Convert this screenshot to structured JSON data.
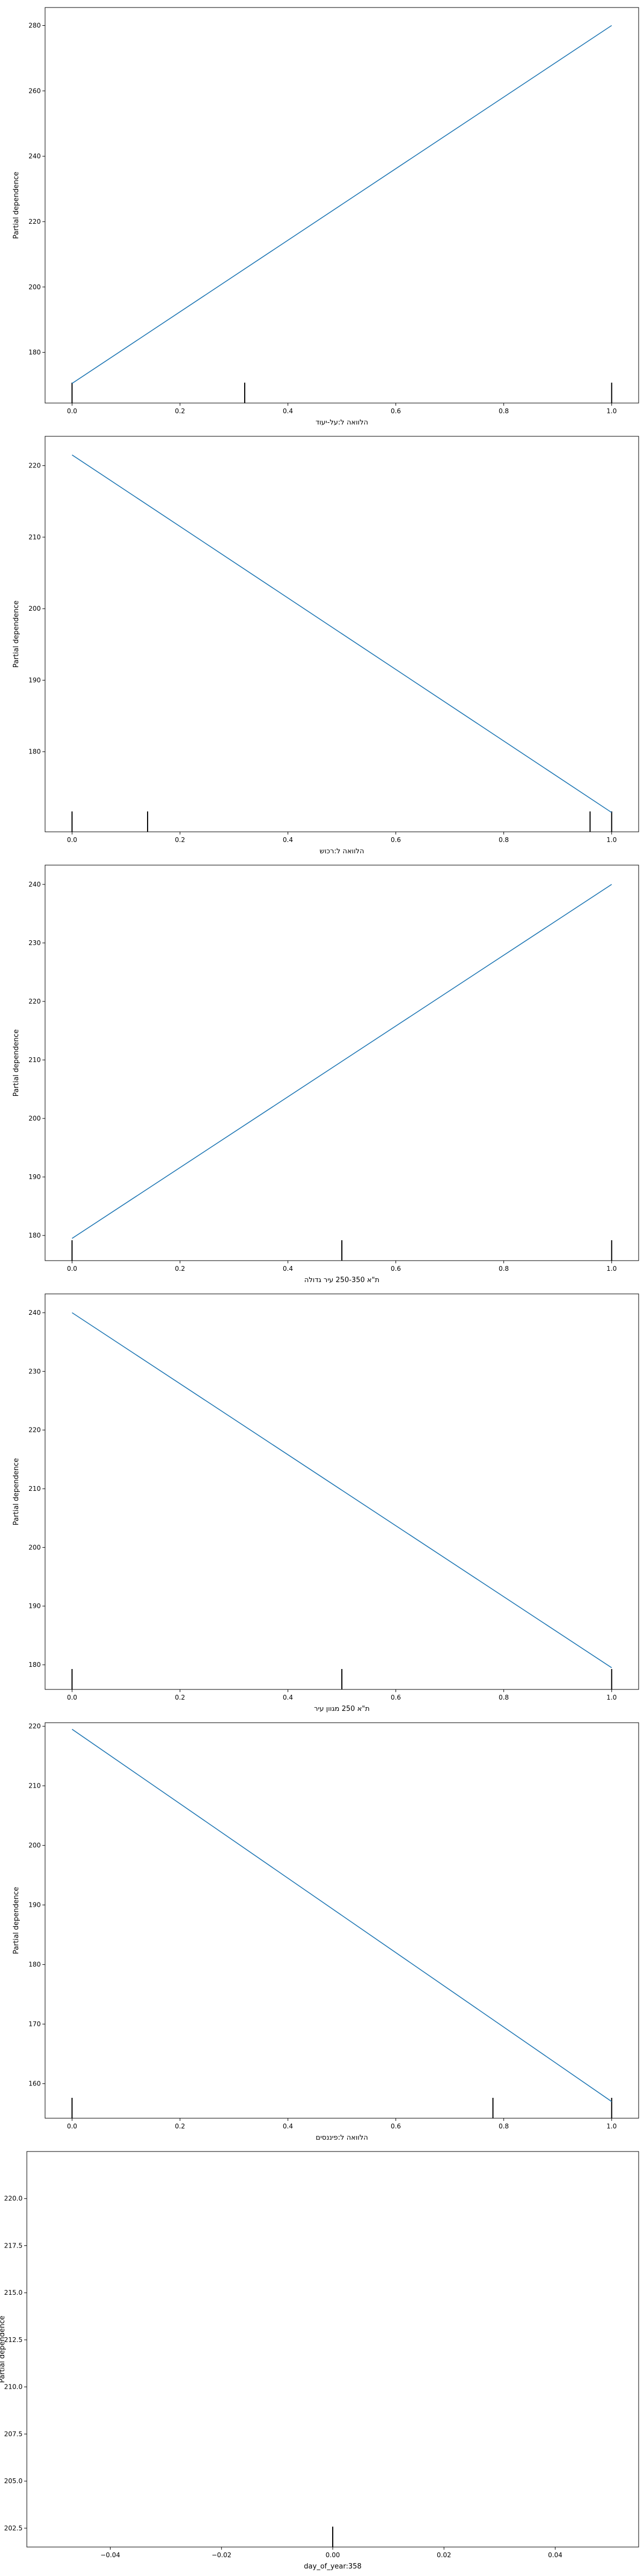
{
  "figure": {
    "background": "#ffffff",
    "line_color": "#1f77b4",
    "rug_color": "#000000"
  },
  "chart_data": [
    {
      "type": "line",
      "xlabel": "הלוואה ל:על-יעוד",
      "ylabel": "Partial dependence",
      "xlim": [
        -0.05,
        1.05
      ],
      "ylim": [
        164.5,
        285.5
      ],
      "xticks": [
        0.0,
        0.2,
        0.4,
        0.6,
        0.8,
        1.0
      ],
      "xtick_labels": [
        "0.0",
        "0.2",
        "0.4",
        "0.6",
        "0.8",
        "1.0"
      ],
      "yticks": [
        180,
        200,
        220,
        240,
        260,
        280
      ],
      "ytick_labels": [
        "180",
        "200",
        "220",
        "240",
        "260",
        "280"
      ],
      "series": [
        {
          "x": [
            0.0,
            1.0
          ],
          "y": [
            170.5,
            280.0
          ]
        }
      ],
      "rug": [
        0.0,
        0.32,
        1.0
      ]
    },
    {
      "type": "line",
      "xlabel": "הלוואה ל:רכוש",
      "ylabel": "Partial dependence",
      "xlim": [
        -0.05,
        1.05
      ],
      "ylim": [
        168.8,
        224.1
      ],
      "xticks": [
        0.0,
        0.2,
        0.4,
        0.6,
        0.8,
        1.0
      ],
      "xtick_labels": [
        "0.0",
        "0.2",
        "0.4",
        "0.6",
        "0.8",
        "1.0"
      ],
      "yticks": [
        180,
        190,
        200,
        210,
        220
      ],
      "ytick_labels": [
        "180",
        "190",
        "200",
        "210",
        "220"
      ],
      "series": [
        {
          "x": [
            0.0,
            1.0
          ],
          "y": [
            221.5,
            171.5
          ]
        }
      ],
      "rug": [
        0.0,
        0.14,
        0.96,
        1.0
      ]
    },
    {
      "type": "line",
      "xlabel": "ת\"א 250-350 עיר גדולה",
      "ylabel": "Partial dependence",
      "xlim": [
        -0.05,
        1.05
      ],
      "ylim": [
        175.7,
        243.3
      ],
      "xticks": [
        0.0,
        0.2,
        0.4,
        0.6,
        0.8,
        1.0
      ],
      "xtick_labels": [
        "0.0",
        "0.2",
        "0.4",
        "0.6",
        "0.8",
        "1.0"
      ],
      "yticks": [
        180,
        190,
        200,
        210,
        220,
        230,
        240
      ],
      "ytick_labels": [
        "180",
        "190",
        "200",
        "210",
        "220",
        "230",
        "240"
      ],
      "series": [
        {
          "x": [
            0.0,
            1.0
          ],
          "y": [
            179.5,
            240.0
          ]
        }
      ],
      "rug": [
        0.0,
        0.5,
        1.0
      ]
    },
    {
      "type": "line",
      "xlabel": "ת\"א 250 מגוון עיר",
      "ylabel": "Partial dependence",
      "xlim": [
        -0.05,
        1.05
      ],
      "ylim": [
        175.8,
        243.2
      ],
      "xticks": [
        0.0,
        0.2,
        0.4,
        0.6,
        0.8,
        1.0
      ],
      "xtick_labels": [
        "0.0",
        "0.2",
        "0.4",
        "0.6",
        "0.8",
        "1.0"
      ],
      "yticks": [
        180,
        190,
        200,
        210,
        220,
        230,
        240
      ],
      "ytick_labels": [
        "180",
        "190",
        "200",
        "210",
        "220",
        "230",
        "240"
      ],
      "series": [
        {
          "x": [
            0.0,
            1.0
          ],
          "y": [
            240.0,
            179.5
          ]
        }
      ],
      "rug": [
        0.0,
        0.5,
        1.0
      ]
    },
    {
      "type": "line",
      "xlabel": "הלוואה ל:פיננסים",
      "ylabel": "Partial dependence",
      "xlim": [
        -0.05,
        1.05
      ],
      "ylim": [
        154.2,
        220.6
      ],
      "xticks": [
        0.0,
        0.2,
        0.4,
        0.6,
        0.8,
        1.0
      ],
      "xtick_labels": [
        "0.0",
        "0.2",
        "0.4",
        "0.6",
        "0.8",
        "1.0"
      ],
      "yticks": [
        160,
        170,
        180,
        190,
        200,
        210,
        220
      ],
      "ytick_labels": [
        "160",
        "170",
        "180",
        "190",
        "200",
        "210",
        "220"
      ],
      "series": [
        {
          "x": [
            0.0,
            1.0
          ],
          "y": [
            219.5,
            157.0
          ]
        }
      ],
      "rug": [
        0.0,
        0.78,
        1.0
      ]
    },
    {
      "type": "line",
      "xlabel": "day_of_year:358",
      "ylabel": "Partial dependence",
      "xlim": [
        -0.055,
        0.055
      ],
      "ylim": [
        201.5,
        222.5
      ],
      "xticks": [
        -0.04,
        -0.02,
        0.0,
        0.02,
        0.04
      ],
      "xtick_labels": [
        "−0.04",
        "−0.02",
        "0.00",
        "0.02",
        "0.04"
      ],
      "yticks": [
        202.5,
        205.0,
        207.5,
        210.0,
        212.5,
        215.0,
        217.5,
        220.0
      ],
      "ytick_labels": [
        "202.5",
        "205.0",
        "207.5",
        "210.0",
        "212.5",
        "215.0",
        "217.5",
        "220.0"
      ],
      "series": [],
      "rug": [
        0.0
      ]
    }
  ]
}
